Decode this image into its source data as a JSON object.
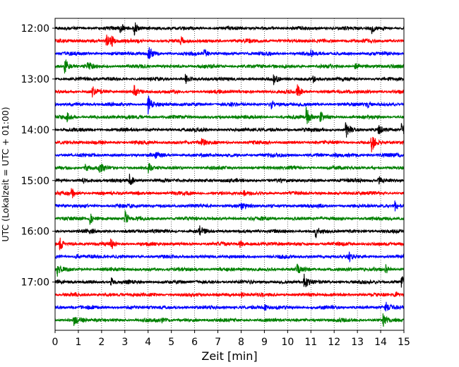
{
  "chart_data": {
    "type": "line",
    "subtype": "helicorder",
    "xlabel": "Zeit  [min]",
    "ylabel": "UTC (Lokalzeit = UTC + 01:00)",
    "xlim": [
      0,
      15
    ],
    "x_ticks": [
      "0",
      "1",
      "2",
      "3",
      "4",
      "5",
      "6",
      "7",
      "8",
      "9",
      "10",
      "11",
      "12",
      "13",
      "14",
      "15"
    ],
    "y_ticks": [
      {
        "label": "12:00",
        "row": 0
      },
      {
        "label": "13:00",
        "row": 4
      },
      {
        "label": "14:00",
        "row": 8
      },
      {
        "label": "15:00",
        "row": 12
      },
      {
        "label": "16:00",
        "row": 16
      },
      {
        "label": "17:00",
        "row": 20
      }
    ],
    "rows": 24,
    "minutes_per_row": 15,
    "grid": "vertical dotted",
    "colors": [
      "#000000",
      "#ff0000",
      "#0000ff",
      "#008000"
    ],
    "events": [
      [
        0,
        2.8,
        0.6
      ],
      [
        0,
        3.4,
        0.9
      ],
      [
        0,
        13.6,
        0.6
      ],
      [
        1,
        2.2,
        0.8
      ],
      [
        1,
        2.4,
        0.7
      ],
      [
        1,
        5.4,
        0.4
      ],
      [
        2,
        4.0,
        0.9
      ],
      [
        2,
        6.4,
        0.5
      ],
      [
        2,
        11.0,
        0.3
      ],
      [
        3,
        0.4,
        1.0
      ],
      [
        3,
        1.4,
        0.4
      ],
      [
        3,
        12.9,
        0.5
      ],
      [
        4,
        5.6,
        0.6
      ],
      [
        4,
        9.4,
        0.5
      ],
      [
        4,
        11.1,
        0.4
      ],
      [
        5,
        1.6,
        0.6
      ],
      [
        5,
        3.4,
        0.7
      ],
      [
        5,
        10.4,
        0.9
      ],
      [
        6,
        4.0,
        1.1
      ],
      [
        6,
        9.3,
        0.5
      ],
      [
        6,
        13.4,
        0.4
      ],
      [
        7,
        0.5,
        0.6
      ],
      [
        7,
        10.8,
        1.2
      ],
      [
        7,
        11.4,
        0.8
      ],
      [
        8,
        12.5,
        1.3
      ],
      [
        8,
        13.9,
        0.7
      ],
      [
        8,
        14.9,
        1.0
      ],
      [
        9,
        6.3,
        0.5
      ],
      [
        9,
        13.6,
        1.2
      ],
      [
        10,
        4.3,
        0.3
      ],
      [
        10,
        12.0,
        0.3
      ],
      [
        11,
        1.9,
        0.6
      ],
      [
        11,
        4.0,
        0.6
      ],
      [
        11,
        1.3,
        0.4
      ],
      [
        12,
        3.2,
        0.7
      ],
      [
        12,
        13.9,
        0.6
      ],
      [
        12,
        1.2,
        0.3
      ],
      [
        13,
        0.7,
        0.6
      ],
      [
        13,
        8.1,
        0.3
      ],
      [
        14,
        14.6,
        0.7
      ],
      [
        14,
        8.0,
        0.4
      ],
      [
        15,
        1.5,
        0.6
      ],
      [
        15,
        3.0,
        1.0
      ],
      [
        16,
        6.2,
        0.6
      ],
      [
        16,
        11.2,
        0.7
      ],
      [
        17,
        0.2,
        0.8
      ],
      [
        17,
        2.4,
        0.7
      ],
      [
        17,
        7.9,
        0.8
      ],
      [
        18,
        12.6,
        0.7
      ],
      [
        18,
        0.9,
        0.3
      ],
      [
        19,
        0.1,
        0.8
      ],
      [
        19,
        10.4,
        0.6
      ],
      [
        19,
        14.2,
        0.6
      ],
      [
        20,
        2.4,
        0.5
      ],
      [
        20,
        10.7,
        1.0
      ],
      [
        20,
        14.9,
        0.9
      ],
      [
        21,
        14.6,
        0.4
      ],
      [
        21,
        8.0,
        0.3
      ],
      [
        22,
        14.2,
        0.7
      ],
      [
        22,
        9.0,
        0.3
      ],
      [
        23,
        0.8,
        0.6
      ],
      [
        23,
        14.1,
        0.7
      ],
      [
        23,
        4.6,
        0.3
      ]
    ]
  }
}
